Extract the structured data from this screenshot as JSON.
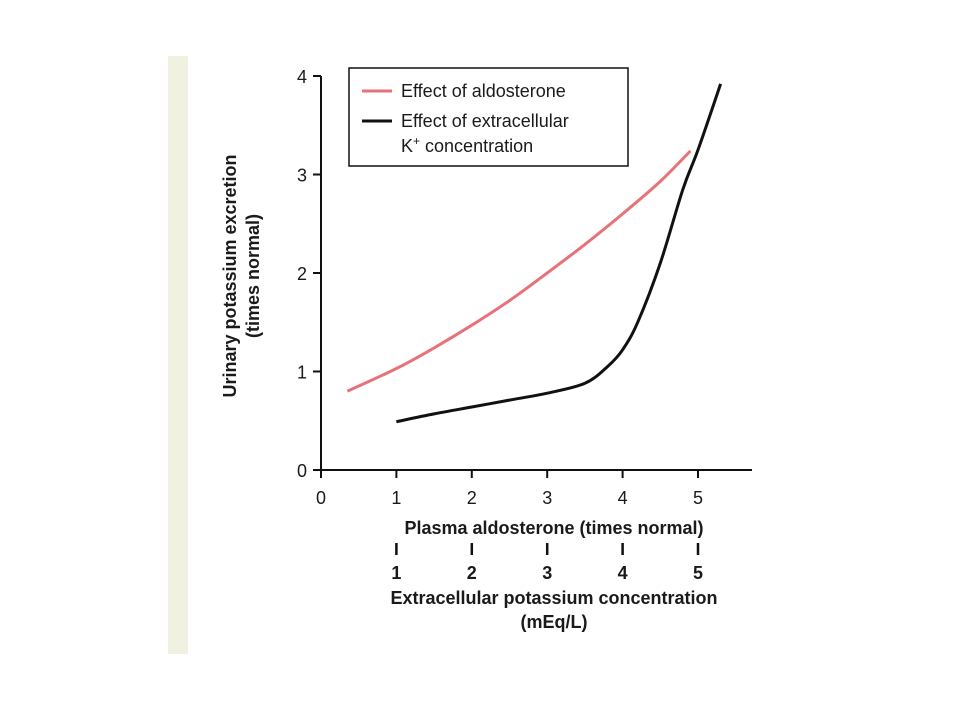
{
  "chart_data": {
    "type": "line",
    "ylabel_line1": "Urinary potassium excretion",
    "ylabel_line2": "(times normal)",
    "xlabel": "Plasma aldosterone (times normal)",
    "x2label_line1": "Extracellular potassium concentration",
    "x2label_line2": "(mEq/L)",
    "xlim": [
      0,
      5.8
    ],
    "ylim": [
      0,
      4
    ],
    "x_ticks": [
      "0",
      "1",
      "2",
      "3",
      "4",
      "5"
    ],
    "y_ticks": [
      "0",
      "1",
      "2",
      "3",
      "4"
    ],
    "x2_ticks": [
      "1",
      "2",
      "3",
      "4",
      "5"
    ],
    "legend": {
      "position": "top-left",
      "aldosterone_label": "Effect of aldosterone",
      "potassium_label_line1": "Effect of extracellular",
      "potassium_label_line2": "K",
      "potassium_label_sup": "+",
      "potassium_label_line2b": " concentration"
    },
    "series": [
      {
        "name": "Effect of aldosterone",
        "color": "#e8727a",
        "x": [
          0.35,
          1.0,
          1.5,
          2.0,
          2.5,
          3.0,
          3.5,
          4.0,
          4.5,
          4.9
        ],
        "y": [
          0.8,
          1.03,
          1.24,
          1.47,
          1.72,
          2.0,
          2.29,
          2.6,
          2.93,
          3.24
        ]
      },
      {
        "name": "Effect of extracellular K+ concentration",
        "color": "#111111",
        "x": [
          1.0,
          1.5,
          2.0,
          2.5,
          3.0,
          3.5,
          3.8,
          4.0,
          4.2,
          4.5,
          4.8,
          5.0,
          5.3
        ],
        "y": [
          0.49,
          0.57,
          0.64,
          0.71,
          0.78,
          0.88,
          1.05,
          1.22,
          1.5,
          2.1,
          2.85,
          3.25,
          3.92
        ]
      }
    ]
  }
}
